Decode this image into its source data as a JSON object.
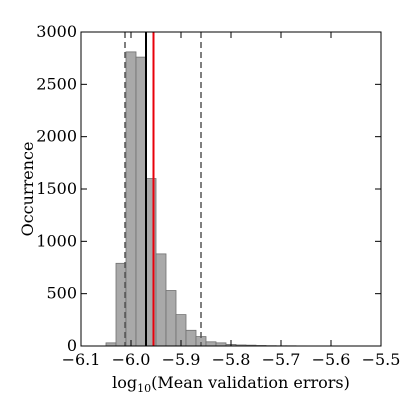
{
  "chart_data": {
    "type": "bar",
    "xlabel_prefix": "log",
    "xlabel_sub": "10",
    "xlabel_rest": "(Mean validation errors)",
    "ylabel": "Occurrence",
    "xlim": [
      -6.1,
      -5.5
    ],
    "ylim": [
      0,
      3000
    ],
    "xticks": [
      -6.1,
      -6.0,
      -5.9,
      -5.8,
      -5.7,
      -5.6,
      -5.5
    ],
    "xtick_labels": [
      "−6.1",
      "−6.0",
      "−5.9",
      "−5.8",
      "−5.7",
      "−5.6",
      "−5.5"
    ],
    "yticks": [
      0,
      500,
      1000,
      1500,
      2000,
      2500,
      3000
    ],
    "ytick_labels": [
      "0",
      "500",
      "1000",
      "1500",
      "2000",
      "2500",
      "3000"
    ],
    "grid": false,
    "bin_width": 0.02,
    "bins": [
      {
        "x0": -6.05,
        "value": 30
      },
      {
        "x0": -6.03,
        "value": 790
      },
      {
        "x0": -6.01,
        "value": 2810
      },
      {
        "x0": -5.99,
        "value": 2760
      },
      {
        "x0": -5.97,
        "value": 1600
      },
      {
        "x0": -5.95,
        "value": 880
      },
      {
        "x0": -5.93,
        "value": 530
      },
      {
        "x0": -5.91,
        "value": 300
      },
      {
        "x0": -5.89,
        "value": 150
      },
      {
        "x0": -5.87,
        "value": 90
      },
      {
        "x0": -5.85,
        "value": 40
      },
      {
        "x0": -5.83,
        "value": 30
      },
      {
        "x0": -5.81,
        "value": 15
      },
      {
        "x0": -5.79,
        "value": 10
      },
      {
        "x0": -5.77,
        "value": 8
      },
      {
        "x0": -5.75,
        "value": 5
      },
      {
        "x0": -5.73,
        "value": 3
      },
      {
        "x0": -5.71,
        "value": 2
      },
      {
        "x0": -5.69,
        "value": 2
      },
      {
        "x0": -5.67,
        "value": 1
      }
    ],
    "vlines": [
      {
        "x": -6.012,
        "style": "dashed",
        "color": "#555555"
      },
      {
        "x": -5.97,
        "style": "solid",
        "color": "#000000"
      },
      {
        "x": -5.955,
        "style": "solid",
        "color": "#e8000b"
      },
      {
        "x": -5.86,
        "style": "dashed",
        "color": "#555555"
      }
    ]
  }
}
